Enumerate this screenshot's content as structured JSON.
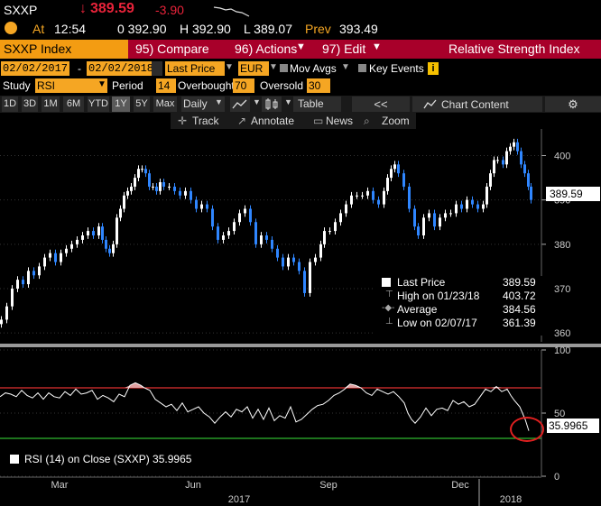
{
  "quote": {
    "ticker": "SXXP",
    "price": "389.59",
    "change": "-3.90",
    "at_label": "At",
    "time": "12:54",
    "open": "0 392.90",
    "high": "H 392.90",
    "low": "L 389.07",
    "prev_label": "Prev",
    "prev": "393.49"
  },
  "menu": {
    "security": "SXXP Index",
    "compare": "95) Compare",
    "actions": "96) Actions",
    "edit": "97) Edit",
    "title": "Relative Strength Index"
  },
  "controls": {
    "start_date": "02/02/2017",
    "end_date": "02/02/2018",
    "price_type": "Last Price",
    "currency": "EUR",
    "mov_avgs": "Mov Avgs",
    "key_events": "Key Events",
    "study_label": "Study",
    "study": "RSI",
    "period_label": "Period",
    "period": "14",
    "overbought_label": "Overbought",
    "overbought": "70",
    "oversold_label": "Oversold",
    "oversold": "30"
  },
  "ranges": [
    "1D",
    "3D",
    "1M",
    "6M",
    "YTD",
    "1Y",
    "5Y",
    "Max"
  ],
  "active_range": "1Y",
  "toolbar": {
    "frequency": "Daily",
    "table": "Table",
    "chart_content": "Chart Content",
    "track": "Track",
    "annotate": "Annotate",
    "news": "News",
    "zoom": "Zoom"
  },
  "legend": {
    "last_price_label": "Last Price",
    "last_price": "389.59",
    "high_label": "High on 01/23/18",
    "high": "403.72",
    "average_label": "Average",
    "average": "384.56",
    "low_label": "Low on 02/07/17",
    "low": "361.39"
  },
  "price_tag": "389.59",
  "rsi_tag": "35.9965",
  "rsi_legend": "RSI (14) on Close (SXXP) 35.9965",
  "colors": {
    "candle_up": "#ffffff",
    "candle_down": "#2f86ff",
    "overbought_line": "#e03030",
    "oversold_line": "#2fb82f",
    "highlight_circle": "#e02020",
    "down_arrow": "#e8233a"
  },
  "chart_data": [
    {
      "type": "line",
      "name_hint": "price",
      "y_ticks": [
        "360",
        "370",
        "380",
        "390",
        "400"
      ],
      "ylim": [
        358,
        406
      ],
      "x_ticks": [
        "Mar",
        "Jun",
        "Sep",
        "Dec"
      ],
      "year_labels": [
        "2017",
        "2018"
      ],
      "points": [
        [
          0,
          363
        ],
        [
          6,
          366
        ],
        [
          12,
          370
        ],
        [
          18,
          372
        ],
        [
          24,
          371
        ],
        [
          30,
          374
        ],
        [
          36,
          373
        ],
        [
          42,
          375
        ],
        [
          48,
          377
        ],
        [
          54,
          378
        ],
        [
          60,
          376
        ],
        [
          66,
          378
        ],
        [
          72,
          379
        ],
        [
          78,
          380
        ],
        [
          84,
          381
        ],
        [
          90,
          382
        ],
        [
          96,
          383
        ],
        [
          102,
          382
        ],
        [
          108,
          384
        ],
        [
          112,
          381
        ],
        [
          116,
          379
        ],
        [
          120,
          378
        ],
        [
          124,
          380
        ],
        [
          128,
          386
        ],
        [
          132,
          388
        ],
        [
          136,
          391
        ],
        [
          140,
          392
        ],
        [
          144,
          393
        ],
        [
          148,
          395
        ],
        [
          152,
          397
        ],
        [
          156,
          397
        ],
        [
          160,
          396
        ],
        [
          164,
          393
        ],
        [
          168,
          393
        ],
        [
          172,
          392
        ],
        [
          176,
          394
        ],
        [
          180,
          393
        ],
        [
          186,
          393
        ],
        [
          192,
          392
        ],
        [
          198,
          391
        ],
        [
          204,
          392
        ],
        [
          210,
          390
        ],
        [
          216,
          388
        ],
        [
          222,
          389
        ],
        [
          228,
          388
        ],
        [
          234,
          384
        ],
        [
          240,
          381
        ],
        [
          246,
          382
        ],
        [
          252,
          383
        ],
        [
          258,
          385
        ],
        [
          264,
          387
        ],
        [
          270,
          388
        ],
        [
          276,
          385
        ],
        [
          282,
          380
        ],
        [
          288,
          382
        ],
        [
          294,
          381
        ],
        [
          300,
          379
        ],
        [
          306,
          377
        ],
        [
          312,
          375
        ],
        [
          318,
          377
        ],
        [
          324,
          376
        ],
        [
          330,
          374
        ],
        [
          336,
          369
        ],
        [
          342,
          376
        ],
        [
          348,
          377
        ],
        [
          354,
          380
        ],
        [
          358,
          383
        ],
        [
          364,
          383
        ],
        [
          370,
          385
        ],
        [
          376,
          387
        ],
        [
          382,
          389
        ],
        [
          388,
          391
        ],
        [
          394,
          391
        ],
        [
          400,
          391
        ],
        [
          406,
          392
        ],
        [
          412,
          390
        ],
        [
          418,
          389
        ],
        [
          424,
          392
        ],
        [
          428,
          395
        ],
        [
          432,
          397
        ],
        [
          436,
          398
        ],
        [
          440,
          396
        ],
        [
          446,
          393
        ],
        [
          452,
          388
        ],
        [
          458,
          384
        ],
        [
          462,
          382
        ],
        [
          468,
          386
        ],
        [
          474,
          387
        ],
        [
          480,
          384
        ],
        [
          486,
          386
        ],
        [
          492,
          387
        ],
        [
          498,
          387
        ],
        [
          504,
          389
        ],
        [
          510,
          388
        ],
        [
          516,
          390
        ],
        [
          522,
          389
        ],
        [
          528,
          388
        ],
        [
          534,
          389
        ],
        [
          538,
          393
        ],
        [
          542,
          396
        ],
        [
          546,
          399
        ],
        [
          550,
          399
        ],
        [
          556,
          398
        ],
        [
          560,
          401
        ],
        [
          564,
          402
        ],
        [
          568,
          403
        ],
        [
          572,
          401
        ],
        [
          576,
          398
        ],
        [
          580,
          396
        ],
        [
          584,
          393
        ],
        [
          587,
          390
        ]
      ]
    },
    {
      "type": "line",
      "name_hint": "rsi",
      "y_ticks": [
        "0",
        "50",
        "100"
      ],
      "ylim": [
        0,
        100
      ],
      "overbought": 70,
      "oversold": 30,
      "points": [
        [
          0,
          63
        ],
        [
          6,
          66
        ],
        [
          12,
          65
        ],
        [
          18,
          63
        ],
        [
          24,
          68
        ],
        [
          30,
          64
        ],
        [
          36,
          62
        ],
        [
          42,
          66
        ],
        [
          48,
          61
        ],
        [
          54,
          66
        ],
        [
          60,
          63
        ],
        [
          66,
          62
        ],
        [
          72,
          67
        ],
        [
          78,
          64
        ],
        [
          84,
          69
        ],
        [
          90,
          65
        ],
        [
          96,
          66
        ],
        [
          102,
          68
        ],
        [
          108,
          61
        ],
        [
          114,
          64
        ],
        [
          120,
          62
        ],
        [
          126,
          59
        ],
        [
          132,
          65
        ],
        [
          138,
          63
        ],
        [
          144,
          72
        ],
        [
          150,
          74
        ],
        [
          156,
          72
        ],
        [
          160,
          70
        ],
        [
          166,
          68
        ],
        [
          172,
          61
        ],
        [
          178,
          58
        ],
        [
          184,
          55
        ],
        [
          190,
          57
        ],
        [
          196,
          52
        ],
        [
          202,
          58
        ],
        [
          208,
          51
        ],
        [
          214,
          53
        ],
        [
          220,
          55
        ],
        [
          226,
          50
        ],
        [
          232,
          47
        ],
        [
          238,
          42
        ],
        [
          244,
          47
        ],
        [
          250,
          51
        ],
        [
          256,
          47
        ],
        [
          262,
          53
        ],
        [
          268,
          51
        ],
        [
          274,
          55
        ],
        [
          280,
          46
        ],
        [
          286,
          53
        ],
        [
          292,
          45
        ],
        [
          298,
          54
        ],
        [
          304,
          44
        ],
        [
          310,
          48
        ],
        [
          316,
          46
        ],
        [
          322,
          55
        ],
        [
          328,
          43
        ],
        [
          334,
          45
        ],
        [
          340,
          49
        ],
        [
          346,
          53
        ],
        [
          352,
          56
        ],
        [
          358,
          57
        ],
        [
          364,
          60
        ],
        [
          370,
          64
        ],
        [
          376,
          66
        ],
        [
          382,
          69
        ],
        [
          388,
          73
        ],
        [
          394,
          72
        ],
        [
          400,
          70
        ],
        [
          406,
          66
        ],
        [
          412,
          64
        ],
        [
          418,
          69
        ],
        [
          424,
          67
        ],
        [
          430,
          65
        ],
        [
          436,
          67
        ],
        [
          442,
          63
        ],
        [
          448,
          58
        ],
        [
          452,
          50
        ],
        [
          456,
          45
        ],
        [
          460,
          42
        ],
        [
          466,
          47
        ],
        [
          472,
          54
        ],
        [
          478,
          48
        ],
        [
          484,
          53
        ],
        [
          490,
          54
        ],
        [
          496,
          52
        ],
        [
          502,
          60
        ],
        [
          508,
          57
        ],
        [
          514,
          59
        ],
        [
          520,
          55
        ],
        [
          526,
          57
        ],
        [
          532,
          63
        ],
        [
          538,
          69
        ],
        [
          544,
          67
        ],
        [
          550,
          71
        ],
        [
          556,
          67
        ],
        [
          562,
          69
        ],
        [
          566,
          64
        ],
        [
          570,
          60
        ],
        [
          576,
          55
        ],
        [
          582,
          45
        ],
        [
          586,
          36
        ]
      ]
    }
  ]
}
